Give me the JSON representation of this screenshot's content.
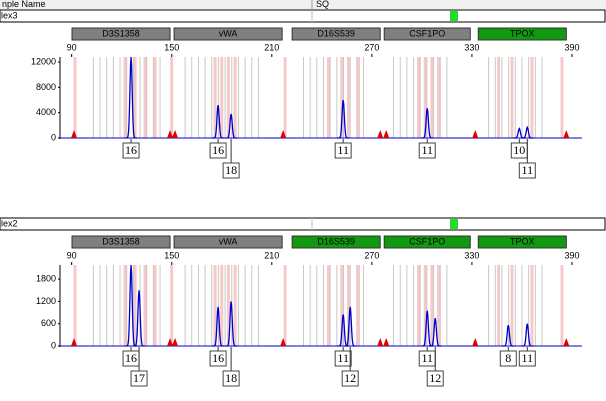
{
  "header": {
    "sample_name": "nple Name",
    "sq": "SQ"
  },
  "chart_data": [
    {
      "type": "electropherogram",
      "label": "lex3",
      "xlim": [
        83,
        396
      ],
      "xticks": [
        90,
        150,
        210,
        270,
        330,
        390
      ],
      "ylim": [
        0,
        12800
      ],
      "yticks": [
        0,
        4000,
        8000,
        12000
      ],
      "markers": [
        {
          "name": "D3S1358",
          "start": 90.2,
          "end": 149,
          "color": "#808080"
        },
        {
          "name": "vWA",
          "start": 151.4,
          "end": 216.2,
          "color": "#808080"
        },
        {
          "name": "D16S539",
          "start": 222.2,
          "end": 275,
          "color": "#808080"
        },
        {
          "name": "CSF1PO",
          "start": 277.4,
          "end": 329,
          "color": "#808080"
        },
        {
          "name": "TPOX",
          "start": 333.8,
          "end": 386.6,
          "color": "#119911"
        }
      ],
      "bins": [
        103,
        107,
        111,
        115,
        119,
        123,
        127,
        131,
        135,
        139,
        143,
        158,
        162,
        166,
        170,
        174,
        178,
        182,
        186,
        190,
        194,
        198,
        202,
        229,
        233,
        237,
        241,
        245,
        249,
        253,
        257,
        261,
        265,
        283,
        287,
        291,
        295,
        299,
        303,
        307,
        311,
        315,
        340,
        344,
        348,
        352,
        356,
        360,
        364,
        368,
        372
      ],
      "pink_bins": [
        92,
        122,
        128,
        134,
        140,
        150,
        176,
        180,
        184,
        188,
        218,
        244,
        252,
        256,
        262,
        298,
        302,
        306,
        310,
        346,
        354,
        366,
        384
      ],
      "size_standard": [
        91.4,
        149,
        152,
        216.8,
        275,
        278.6,
        332,
        386.6
      ],
      "peaks": [
        {
          "x": 125.6,
          "height": 12800,
          "allele": "16"
        },
        {
          "x": 177.8,
          "height": 5200,
          "allele": "16"
        },
        {
          "x": 185.6,
          "height": 3800,
          "allele": "18"
        },
        {
          "x": 252.8,
          "height": 6000,
          "allele": "11"
        },
        {
          "x": 303.2,
          "height": 4700,
          "allele": "11"
        },
        {
          "x": 358.4,
          "height": 1500,
          "allele": "10"
        },
        {
          "x": 363.2,
          "height": 1700,
          "allele": "11"
        }
      ]
    },
    {
      "type": "electropherogram",
      "label": "lex2",
      "xlim": [
        83,
        396
      ],
      "xticks": [
        90,
        150,
        210,
        270,
        330,
        390
      ],
      "ylim": [
        0,
        2180
      ],
      "yticks": [
        0,
        600,
        1200,
        1800
      ],
      "markers": [
        {
          "name": "D3S1358",
          "start": 90.2,
          "end": 149,
          "color": "#808080"
        },
        {
          "name": "vWA",
          "start": 151.4,
          "end": 216.2,
          "color": "#808080"
        },
        {
          "name": "D16S539",
          "start": 222.2,
          "end": 275,
          "color": "#119911"
        },
        {
          "name": "CSF1PO",
          "start": 277.4,
          "end": 329,
          "color": "#119911"
        },
        {
          "name": "TPOX",
          "start": 333.8,
          "end": 386.6,
          "color": "#119911"
        }
      ],
      "bins": [
        103,
        107,
        111,
        115,
        119,
        123,
        127,
        131,
        135,
        139,
        143,
        158,
        162,
        166,
        170,
        174,
        178,
        182,
        186,
        190,
        194,
        198,
        202,
        229,
        233,
        237,
        241,
        245,
        249,
        253,
        257,
        261,
        265,
        283,
        287,
        291,
        295,
        299,
        303,
        307,
        311,
        315,
        340,
        344,
        348,
        352,
        356,
        360,
        364,
        368,
        372
      ],
      "pink_bins": [
        92,
        122,
        128,
        134,
        140,
        150,
        176,
        180,
        184,
        188,
        218,
        244,
        252,
        256,
        262,
        298,
        302,
        306,
        310,
        346,
        354,
        366,
        384
      ],
      "size_standard": [
        91.4,
        149,
        152,
        216.8,
        275,
        278.6,
        332,
        386.6
      ],
      "peaks": [
        {
          "x": 125.6,
          "height": 2180,
          "allele": "16"
        },
        {
          "x": 130.4,
          "height": 1500,
          "allele": "17"
        },
        {
          "x": 177.8,
          "height": 1050,
          "allele": "16"
        },
        {
          "x": 185.6,
          "height": 1200,
          "allele": "18"
        },
        {
          "x": 252.8,
          "height": 850,
          "allele": "11"
        },
        {
          "x": 257,
          "height": 1050,
          "allele": "12"
        },
        {
          "x": 303.2,
          "height": 950,
          "allele": "11"
        },
        {
          "x": 308,
          "height": 750,
          "allele": "12"
        },
        {
          "x": 351.8,
          "height": 560,
          "allele": "8"
        },
        {
          "x": 363.2,
          "height": 600,
          "allele": "11"
        }
      ]
    }
  ]
}
